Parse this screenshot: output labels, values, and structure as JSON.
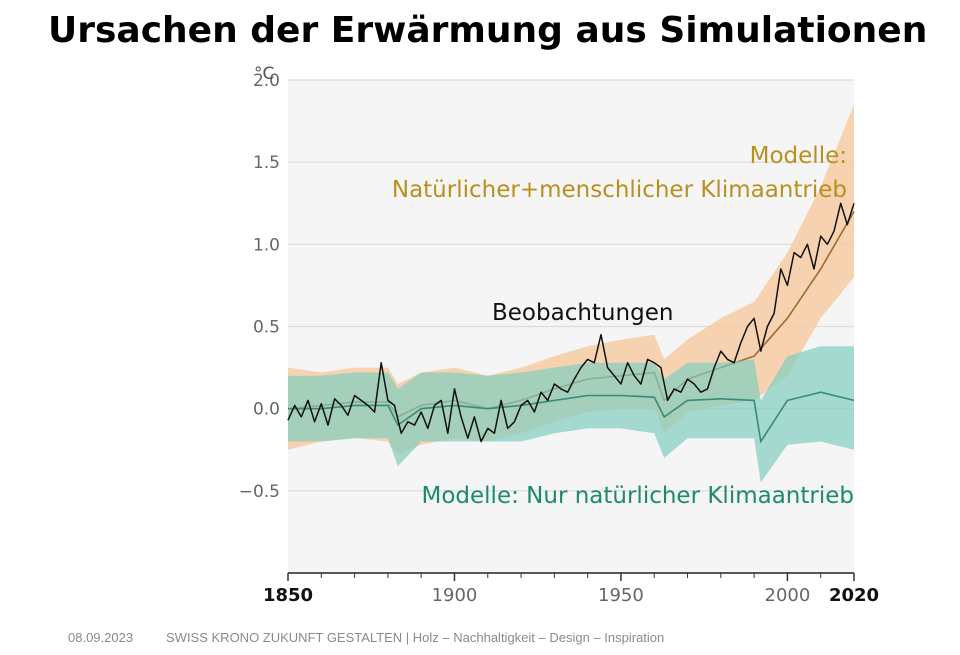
{
  "slide": {
    "title": "Ursachen der Erwärmung aus Simulationen"
  },
  "footer": {
    "date": "08.09.2023",
    "text": "SWISS KRONO ZUKUNFT GESTALTEN | Holz – Nachhaltigkeit – Design – Inspiration"
  },
  "colors": {
    "plot_background": "#f5f5f5",
    "grid": "#dcdcdc",
    "axis_text": "#666666",
    "observations": "#111111",
    "human_mean": "#a0692c",
    "human_band": "#f7c9a0",
    "human_label": "#b8901e",
    "natural_mean": "#3a8a7a",
    "natural_band": "#80cdbf",
    "natural_label": "#1c8a6e"
  },
  "chart_data": {
    "type": "line",
    "ylabel": "°C",
    "ylim": [
      -1.0,
      2.0
    ],
    "xlim": [
      1850,
      2020
    ],
    "yticks": [
      2.0,
      1.5,
      1.0,
      0.5,
      0.0,
      -0.5
    ],
    "ytick_labels": [
      "2.0",
      "1.5",
      "1.0",
      "0.5",
      "0.0",
      "−0.5"
    ],
    "xticks_major": [
      1850,
      1900,
      1950,
      2000,
      2020
    ],
    "xtick_labels": [
      "1850",
      "1900",
      "1950",
      "2000",
      "2020"
    ],
    "xtick_bold": [
      1850,
      2020
    ],
    "grid": true,
    "annotations": {
      "human_line1": "Modelle:",
      "human_line2": "Natürlicher+menschlicher Klimaantrieb",
      "observations": "Beobachtungen",
      "natural": "Modelle: Nur natürlicher Klimaantrieb"
    },
    "series": [
      {
        "key": "observations",
        "style": "line",
        "x": [
          1850,
          1852,
          1854,
          1856,
          1858,
          1860,
          1862,
          1864,
          1866,
          1868,
          1870,
          1872,
          1874,
          1876,
          1878,
          1880,
          1882,
          1884,
          1886,
          1888,
          1890,
          1892,
          1894,
          1896,
          1898,
          1900,
          1902,
          1904,
          1906,
          1908,
          1910,
          1912,
          1914,
          1916,
          1918,
          1920,
          1922,
          1924,
          1926,
          1928,
          1930,
          1932,
          1934,
          1936,
          1938,
          1940,
          1942,
          1944,
          1946,
          1948,
          1950,
          1952,
          1954,
          1956,
          1958,
          1960,
          1962,
          1964,
          1966,
          1968,
          1970,
          1972,
          1974,
          1976,
          1978,
          1980,
          1982,
          1984,
          1986,
          1988,
          1990,
          1992,
          1994,
          1996,
          1998,
          2000,
          2002,
          2004,
          2006,
          2008,
          2010,
          2012,
          2014,
          2016,
          2018,
          2020
        ],
        "values": [
          -0.07,
          0.02,
          -0.05,
          0.05,
          -0.08,
          0.03,
          -0.1,
          0.06,
          0.02,
          -0.04,
          0.08,
          0.05,
          0.02,
          -0.02,
          0.28,
          0.05,
          0.02,
          -0.15,
          -0.08,
          -0.1,
          -0.02,
          -0.12,
          0.02,
          0.05,
          -0.15,
          0.12,
          -0.05,
          -0.18,
          -0.05,
          -0.2,
          -0.12,
          -0.15,
          0.05,
          -0.12,
          -0.08,
          0.02,
          0.05,
          -0.02,
          0.1,
          0.05,
          0.15,
          0.12,
          0.1,
          0.18,
          0.25,
          0.3,
          0.28,
          0.45,
          0.25,
          0.2,
          0.15,
          0.28,
          0.2,
          0.15,
          0.3,
          0.28,
          0.25,
          0.05,
          0.12,
          0.1,
          0.18,
          0.15,
          0.1,
          0.12,
          0.25,
          0.35,
          0.3,
          0.28,
          0.4,
          0.5,
          0.55,
          0.35,
          0.5,
          0.58,
          0.85,
          0.75,
          0.95,
          0.92,
          1.0,
          0.85,
          1.05,
          1.0,
          1.08,
          1.25,
          1.12,
          1.25
        ]
      },
      {
        "key": "human_models",
        "style": "band",
        "x": [
          1850,
          1860,
          1870,
          1880,
          1883,
          1890,
          1900,
          1910,
          1920,
          1930,
          1940,
          1950,
          1960,
          1963,
          1970,
          1980,
          1990,
          2000,
          2010,
          2020
        ],
        "mean": [
          0.0,
          0.02,
          0.04,
          0.04,
          -0.05,
          0.02,
          0.05,
          0.0,
          0.05,
          0.12,
          0.18,
          0.2,
          0.22,
          0.05,
          0.18,
          0.25,
          0.32,
          0.55,
          0.85,
          1.2
        ],
        "lower": [
          -0.25,
          -0.2,
          -0.18,
          -0.2,
          -0.28,
          -0.22,
          -0.18,
          -0.2,
          -0.15,
          -0.08,
          -0.02,
          0.0,
          0.0,
          -0.15,
          -0.02,
          0.02,
          0.05,
          0.2,
          0.55,
          0.8
        ],
        "upper": [
          0.25,
          0.22,
          0.25,
          0.25,
          0.15,
          0.22,
          0.25,
          0.2,
          0.25,
          0.32,
          0.38,
          0.42,
          0.45,
          0.3,
          0.42,
          0.55,
          0.65,
          0.95,
          1.35,
          1.85
        ]
      },
      {
        "key": "natural_models",
        "style": "band",
        "x": [
          1850,
          1860,
          1870,
          1880,
          1883,
          1890,
          1900,
          1910,
          1920,
          1930,
          1940,
          1950,
          1960,
          1963,
          1970,
          1980,
          1990,
          1992,
          2000,
          2010,
          2020
        ],
        "mean": [
          0.0,
          0.0,
          0.02,
          0.02,
          -0.1,
          0.0,
          0.02,
          0.0,
          0.02,
          0.05,
          0.08,
          0.08,
          0.07,
          -0.05,
          0.05,
          0.06,
          0.05,
          -0.2,
          0.05,
          0.1,
          0.05
        ],
        "lower": [
          -0.2,
          -0.2,
          -0.18,
          -0.18,
          -0.35,
          -0.2,
          -0.2,
          -0.2,
          -0.2,
          -0.15,
          -0.12,
          -0.12,
          -0.15,
          -0.3,
          -0.18,
          -0.18,
          -0.18,
          -0.45,
          -0.22,
          -0.2,
          -0.25
        ],
        "upper": [
          0.2,
          0.2,
          0.22,
          0.22,
          0.12,
          0.22,
          0.22,
          0.2,
          0.22,
          0.25,
          0.28,
          0.28,
          0.28,
          0.18,
          0.28,
          0.28,
          0.3,
          0.05,
          0.32,
          0.38,
          0.38
        ]
      }
    ]
  }
}
